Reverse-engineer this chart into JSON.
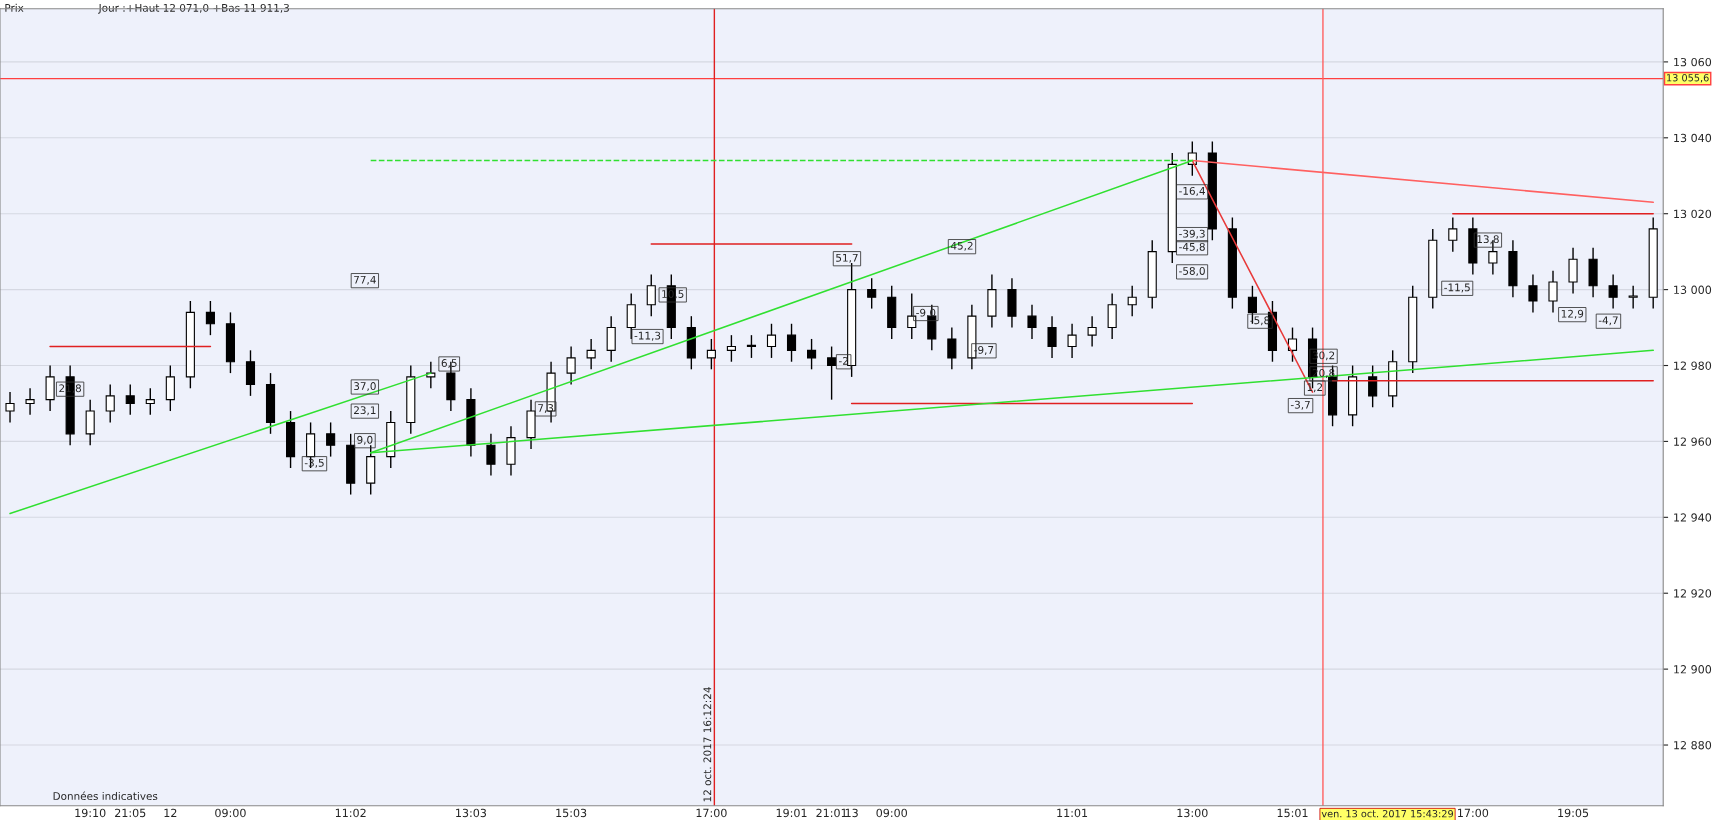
{
  "chart_data": {
    "type": "candlestick",
    "categories": [
      null,
      null,
      null,
      null,
      "19:10",
      null,
      "21:05",
      null,
      "12",
      null,
      null,
      "09:00",
      null,
      null,
      null,
      null,
      null,
      "11:02",
      null,
      null,
      null,
      null,
      null,
      "13:03",
      null,
      null,
      null,
      null,
      "15:03",
      null,
      null,
      null,
      null,
      null,
      null,
      "17:00",
      null,
      null,
      null,
      "19:01",
      null,
      "21:01",
      "13",
      null,
      "09:00",
      null,
      null,
      null,
      null,
      null,
      null,
      null,
      null,
      "11:01",
      null,
      null,
      null,
      null,
      null,
      "13:00",
      null,
      null,
      null,
      null,
      "15:01",
      null,
      null,
      null,
      null,
      null,
      null,
      null,
      null,
      "17:00",
      null,
      null,
      null,
      null,
      "19:05",
      null,
      null,
      null,
      null
    ],
    "ohlc": [
      [
        12968,
        12973,
        12965,
        12970
      ],
      [
        12970,
        12974,
        12967,
        12971
      ],
      [
        12971,
        12980,
        12968,
        12977
      ],
      [
        12977,
        12980,
        12959,
        12962
      ],
      [
        12962,
        12971,
        12959,
        12968
      ],
      [
        12968,
        12975,
        12965,
        12972
      ],
      [
        12972,
        12975,
        12967,
        12970
      ],
      [
        12970,
        12974,
        12967,
        12971
      ],
      [
        12971,
        12980,
        12968,
        12977
      ],
      [
        12977,
        12997,
        12974,
        12994
      ],
      [
        12994,
        12997,
        12988,
        12991
      ],
      [
        12991,
        12994,
        12978,
        12981
      ],
      [
        12981,
        12984,
        12972,
        12975
      ],
      [
        12975,
        12978,
        12962,
        12965
      ],
      [
        12965,
        12968,
        12953,
        12956
      ],
      [
        12956,
        12965,
        12953,
        12962
      ],
      [
        12962,
        12965,
        12956,
        12959
      ],
      [
        12959,
        12962,
        12946,
        12949
      ],
      [
        12949,
        12959,
        12946,
        12956
      ],
      [
        12956,
        12968,
        12953,
        12965
      ],
      [
        12965,
        12980,
        12962,
        12977
      ],
      [
        12977,
        12981,
        12974,
        12978
      ],
      [
        12978,
        12981,
        12968,
        12971
      ],
      [
        12971,
        12974,
        12956,
        12959
      ],
      [
        12959,
        12962,
        12951,
        12954
      ],
      [
        12954,
        12964,
        12951,
        12961
      ],
      [
        12961,
        12971,
        12958,
        12968
      ],
      [
        12968,
        12981,
        12965,
        12978
      ],
      [
        12978,
        12985,
        12975,
        12982
      ],
      [
        12982,
        12987,
        12979,
        12984
      ],
      [
        12984,
        12993,
        12981,
        12990
      ],
      [
        12990,
        12999,
        12987,
        12996
      ],
      [
        12996,
        13004,
        12993,
        13001
      ],
      [
        13001,
        13004,
        12987,
        12990
      ],
      [
        12990,
        12993,
        12979,
        12982
      ],
      [
        12982,
        12987,
        12979,
        12984
      ],
      [
        12984,
        12988,
        12981,
        12985
      ],
      [
        12985,
        12988,
        12982,
        12985
      ],
      [
        12985,
        12991,
        12982,
        12988
      ],
      [
        12988,
        12991,
        12981,
        12984
      ],
      [
        12984,
        12987,
        12979,
        12982
      ],
      [
        12982,
        12985,
        12971,
        12980
      ],
      [
        12980,
        13007,
        12977,
        13000
      ],
      [
        13000,
        13003,
        12995,
        12998
      ],
      [
        12998,
        13001,
        12987,
        12990
      ],
      [
        12990,
        12999,
        12987,
        12993
      ],
      [
        12993,
        12996,
        12984,
        12987
      ],
      [
        12987,
        12990,
        12979,
        12982
      ],
      [
        12982,
        12996,
        12979,
        12993
      ],
      [
        12993,
        13004,
        12990,
        13000
      ],
      [
        13000,
        13003,
        12990,
        12993
      ],
      [
        12993,
        12996,
        12987,
        12990
      ],
      [
        12990,
        12993,
        12982,
        12985
      ],
      [
        12985,
        12991,
        12982,
        12988
      ],
      [
        12988,
        12993,
        12985,
        12990
      ],
      [
        12990,
        12999,
        12987,
        12996
      ],
      [
        12996,
        13001,
        12993,
        12998
      ],
      [
        12998,
        13013,
        12995,
        13010
      ],
      [
        13010,
        13036,
        13007,
        13033
      ],
      [
        13033,
        13039,
        13030,
        13036
      ],
      [
        13036,
        13039,
        13013,
        13016
      ],
      [
        13016,
        13019,
        12995,
        12998
      ],
      [
        12998,
        13001,
        12991,
        12994
      ],
      [
        12994,
        12997,
        12981,
        12984
      ],
      [
        12984,
        12990,
        12981,
        12987
      ],
      [
        12987,
        12990,
        12974,
        12977
      ],
      [
        12977,
        12980,
        12964,
        12967
      ],
      [
        12967,
        12980,
        12964,
        12977
      ],
      [
        12977,
        12980,
        12969,
        12972
      ],
      [
        12972,
        12984,
        12969,
        12981
      ],
      [
        12981,
        13001,
        12978,
        12998
      ],
      [
        12998,
        13016,
        12995,
        13013
      ],
      [
        13013,
        13019,
        13010,
        13016
      ],
      [
        13016,
        13019,
        13004,
        13007
      ],
      [
        13007,
        13013,
        13004,
        13010
      ],
      [
        13010,
        13013,
        12998,
        13001
      ],
      [
        13001,
        13004,
        12994,
        12997
      ],
      [
        12997,
        13005,
        12994,
        13002
      ],
      [
        13002,
        13011,
        12999,
        13008
      ],
      [
        13008,
        13011,
        12998,
        13001
      ],
      [
        13001,
        13004,
        12995,
        12998
      ],
      [
        12998,
        13001,
        12995,
        12998
      ],
      [
        12998,
        13019,
        12995,
        13016
      ]
    ],
    "series": [
      {
        "type": "line",
        "color": "#e02020",
        "line_style": "solid",
        "values": [
          null,
          null,
          12985,
          null,
          null,
          null,
          null,
          null,
          null,
          null,
          12985,
          null,
          null,
          null,
          null,
          null,
          null,
          null,
          null,
          null,
          null,
          null,
          null,
          null,
          null,
          null,
          null,
          null,
          null,
          null,
          null,
          null,
          null,
          null,
          null,
          null,
          null,
          null,
          null,
          null,
          null,
          null,
          null,
          null,
          null,
          null,
          null,
          null,
          null,
          null,
          null,
          null,
          null,
          null,
          null,
          null,
          null,
          null,
          null,
          null,
          null,
          null,
          null,
          null,
          null,
          null,
          null,
          null,
          null,
          null,
          null,
          null,
          null,
          null,
          null,
          null,
          null,
          null,
          null,
          null,
          null,
          null,
          null
        ]
      },
      {
        "type": "line",
        "color": "#e02020",
        "line_style": "solid",
        "values": [
          null,
          null,
          null,
          null,
          null,
          null,
          null,
          null,
          null,
          null,
          null,
          null,
          null,
          null,
          null,
          null,
          null,
          null,
          null,
          null,
          null,
          null,
          null,
          null,
          null,
          null,
          null,
          null,
          null,
          null,
          null,
          null,
          13012,
          null,
          null,
          null,
          null,
          null,
          null,
          null,
          null,
          null,
          13012,
          null,
          null,
          null,
          null,
          null,
          null,
          null,
          null,
          null,
          null,
          null,
          null,
          null,
          null,
          null,
          null,
          null,
          null,
          null,
          null,
          null,
          null,
          null,
          null,
          null,
          null,
          null,
          null,
          null,
          null,
          null,
          null,
          null,
          null,
          null,
          null,
          null,
          null,
          null,
          null
        ]
      },
      {
        "type": "line",
        "color": "#e02020",
        "line_style": "solid",
        "values": [
          null,
          null,
          null,
          null,
          null,
          null,
          null,
          null,
          null,
          null,
          null,
          null,
          null,
          null,
          null,
          null,
          null,
          null,
          null,
          null,
          null,
          null,
          null,
          null,
          null,
          null,
          null,
          null,
          null,
          null,
          null,
          null,
          null,
          null,
          null,
          null,
          null,
          null,
          null,
          null,
          null,
          null,
          12970,
          null,
          null,
          null,
          null,
          null,
          null,
          null,
          null,
          null,
          null,
          null,
          null,
          null,
          null,
          null,
          null,
          12970,
          null,
          null,
          null,
          null,
          null,
          null,
          null,
          null,
          null,
          null,
          null,
          null,
          null,
          null,
          null,
          null,
          null,
          null,
          null,
          null,
          null,
          null,
          null
        ]
      },
      {
        "type": "line",
        "color": "#e02020",
        "line_style": "solid",
        "values": [
          null,
          null,
          null,
          null,
          null,
          null,
          null,
          null,
          null,
          null,
          null,
          null,
          null,
          null,
          null,
          null,
          null,
          null,
          null,
          null,
          null,
          null,
          null,
          null,
          null,
          null,
          null,
          null,
          null,
          null,
          null,
          null,
          null,
          null,
          null,
          null,
          null,
          null,
          null,
          null,
          null,
          null,
          null,
          null,
          null,
          null,
          null,
          null,
          null,
          null,
          null,
          null,
          null,
          null,
          null,
          null,
          null,
          null,
          null,
          null,
          null,
          null,
          null,
          null,
          null,
          null,
          null,
          null,
          null,
          null,
          null,
          null,
          13020,
          null,
          null,
          null,
          null,
          null,
          null,
          null,
          null,
          null,
          13020
        ]
      },
      {
        "type": "line",
        "color": "#e02020",
        "line_style": "solid",
        "values": [
          null,
          null,
          null,
          null,
          null,
          null,
          null,
          null,
          null,
          null,
          null,
          null,
          null,
          null,
          null,
          null,
          null,
          null,
          null,
          null,
          null,
          null,
          null,
          null,
          null,
          null,
          null,
          null,
          null,
          null,
          null,
          null,
          null,
          null,
          null,
          null,
          null,
          null,
          null,
          null,
          null,
          null,
          null,
          null,
          null,
          null,
          null,
          null,
          null,
          null,
          null,
          null,
          null,
          null,
          null,
          null,
          null,
          null,
          null,
          null,
          null,
          null,
          null,
          null,
          null,
          null,
          12976,
          null,
          null,
          null,
          null,
          null,
          null,
          null,
          null,
          null,
          null,
          null,
          null,
          null,
          null,
          null,
          12976
        ]
      },
      {
        "type": "line",
        "color": "#ff6060",
        "line_style": "solid",
        "values": [
          null,
          null,
          null,
          null,
          null,
          null,
          null,
          null,
          null,
          null,
          null,
          null,
          null,
          null,
          null,
          null,
          null,
          null,
          null,
          null,
          null,
          null,
          null,
          null,
          null,
          null,
          null,
          null,
          null,
          null,
          null,
          null,
          null,
          null,
          null,
          null,
          null,
          null,
          null,
          null,
          null,
          null,
          null,
          null,
          null,
          null,
          null,
          null,
          null,
          null,
          null,
          null,
          null,
          null,
          null,
          null,
          null,
          null,
          null,
          13034,
          null,
          null,
          null,
          null,
          null,
          null,
          null,
          null,
          null,
          null,
          null,
          null,
          null,
          null,
          null,
          null,
          null,
          null,
          null,
          null,
          null,
          null,
          13023
        ]
      },
      {
        "type": "line",
        "color": "#e83a3a",
        "line_style": "solid",
        "values": [
          null,
          null,
          null,
          null,
          null,
          null,
          null,
          null,
          null,
          null,
          null,
          null,
          null,
          null,
          null,
          null,
          null,
          null,
          null,
          null,
          null,
          null,
          null,
          null,
          null,
          null,
          null,
          null,
          null,
          null,
          null,
          null,
          null,
          null,
          null,
          null,
          null,
          null,
          null,
          null,
          null,
          null,
          null,
          null,
          null,
          null,
          null,
          null,
          null,
          null,
          null,
          null,
          null,
          null,
          null,
          null,
          null,
          null,
          null,
          13034,
          null,
          null,
          null,
          null,
          null,
          12973,
          null,
          null,
          null,
          null,
          null,
          null,
          null,
          null,
          null,
          null,
          null,
          null,
          null,
          null,
          null,
          null,
          null
        ]
      },
      {
        "type": "line",
        "color": "#30e030",
        "line_style": "dashed",
        "values": [
          null,
          null,
          null,
          null,
          null,
          null,
          null,
          null,
          null,
          null,
          null,
          null,
          null,
          null,
          null,
          null,
          null,
          null,
          13034,
          null,
          null,
          null,
          null,
          null,
          null,
          null,
          null,
          null,
          null,
          null,
          null,
          null,
          null,
          null,
          null,
          null,
          null,
          null,
          null,
          null,
          null,
          null,
          null,
          null,
          null,
          null,
          null,
          null,
          null,
          null,
          null,
          null,
          null,
          null,
          null,
          null,
          null,
          null,
          null,
          13034,
          null,
          null,
          null,
          null,
          null,
          null,
          null,
          null,
          null,
          null,
          null,
          null,
          null,
          null,
          null,
          null,
          null,
          null,
          null,
          null,
          null,
          null,
          null
        ]
      },
      {
        "type": "line",
        "color": "#30e030",
        "line_style": "solid",
        "values": [
          null,
          null,
          null,
          null,
          null,
          null,
          null,
          null,
          null,
          null,
          null,
          null,
          null,
          null,
          null,
          null,
          null,
          null,
          12957,
          null,
          null,
          null,
          null,
          null,
          null,
          null,
          null,
          null,
          null,
          null,
          null,
          null,
          null,
          null,
          null,
          null,
          null,
          null,
          null,
          null,
          null,
          null,
          null,
          null,
          null,
          null,
          null,
          null,
          null,
          null,
          null,
          null,
          null,
          null,
          null,
          null,
          null,
          null,
          null,
          13034,
          null,
          null,
          null,
          null,
          null,
          null,
          null,
          null,
          null,
          null,
          null,
          null,
          null,
          null,
          null,
          null,
          null,
          null,
          null,
          null,
          null,
          null,
          null
        ]
      },
      {
        "type": "line",
        "color": "#30e030",
        "line_style": "solid",
        "values": [
          12941,
          null,
          null,
          null,
          null,
          null,
          null,
          null,
          null,
          null,
          null,
          null,
          null,
          null,
          null,
          null,
          null,
          null,
          null,
          null,
          null,
          12978,
          null,
          null,
          null,
          null,
          null,
          null,
          null,
          null,
          null,
          null,
          null,
          null,
          null,
          null,
          null,
          null,
          null,
          null,
          null,
          null,
          null,
          null,
          null,
          null,
          null,
          null,
          null,
          null,
          null,
          null,
          null,
          null,
          null,
          null,
          null,
          null,
          null,
          null,
          null,
          null,
          null,
          null,
          null,
          null,
          null,
          null,
          null,
          null,
          null,
          null,
          null,
          null,
          null,
          null,
          null,
          null,
          null,
          null,
          null,
          null,
          null
        ]
      },
      {
        "type": "line",
        "color": "#30e030",
        "line_style": "solid",
        "values": [
          null,
          null,
          null,
          null,
          null,
          null,
          null,
          null,
          null,
          null,
          null,
          null,
          null,
          null,
          null,
          null,
          null,
          null,
          12957,
          null,
          null,
          null,
          null,
          null,
          null,
          null,
          null,
          null,
          null,
          null,
          null,
          null,
          null,
          null,
          null,
          null,
          null,
          null,
          null,
          null,
          null,
          null,
          null,
          null,
          null,
          null,
          null,
          null,
          null,
          null,
          null,
          null,
          null,
          null,
          null,
          null,
          null,
          null,
          null,
          null,
          null,
          null,
          null,
          null,
          null,
          null,
          null,
          null,
          null,
          null,
          null,
          null,
          null,
          null,
          null,
          null,
          null,
          null,
          null,
          null,
          null,
          null,
          12984
        ]
      }
    ],
    "ylim": [
      12864,
      13074
    ],
    "yticks": [
      {
        "value": 12880,
        "label": "12 880"
      },
      {
        "value": 12900,
        "label": "12 900"
      },
      {
        "value": 12920,
        "label": "12 920"
      },
      {
        "value": 12940,
        "label": "12 940"
      },
      {
        "value": 12960,
        "label": "12 960"
      },
      {
        "value": 12980,
        "label": "12 980"
      },
      {
        "value": 13000,
        "label": "13 000"
      },
      {
        "value": 13020,
        "label": "13 020"
      },
      {
        "value": 13040,
        "label": "13 040"
      },
      {
        "value": 13060,
        "label": "13 060"
      }
    ],
    "grid": "y",
    "ref_lines": [
      {
        "axis": "y",
        "value": 13055.6,
        "label": "13 055,6",
        "color": "#ff4040"
      }
    ],
    "annotations": [
      "Prix",
      "Jour :+Haut 12 071,0 +Bas 11 911,3",
      "Données indicatives",
      "12 oct. 2017 16:12:24",
      "ven. 13 oct. 2017 15:43:29",
      "21,8",
      "-3,5",
      "9,0",
      "23,1",
      "37,0",
      "77,4",
      "6,5",
      "7,3",
      "10,5",
      "-11,3",
      "51,7",
      "-2",
      "-9,0",
      "45,2",
      "-9,7",
      "-16,4",
      "-39,3",
      "-45,8",
      "-58,0",
      "-5,8",
      "30,2",
      "20,8",
      "1,2",
      "-3,7",
      "13,8",
      "-11,5",
      "12,9",
      "-4,7"
    ]
  }
}
